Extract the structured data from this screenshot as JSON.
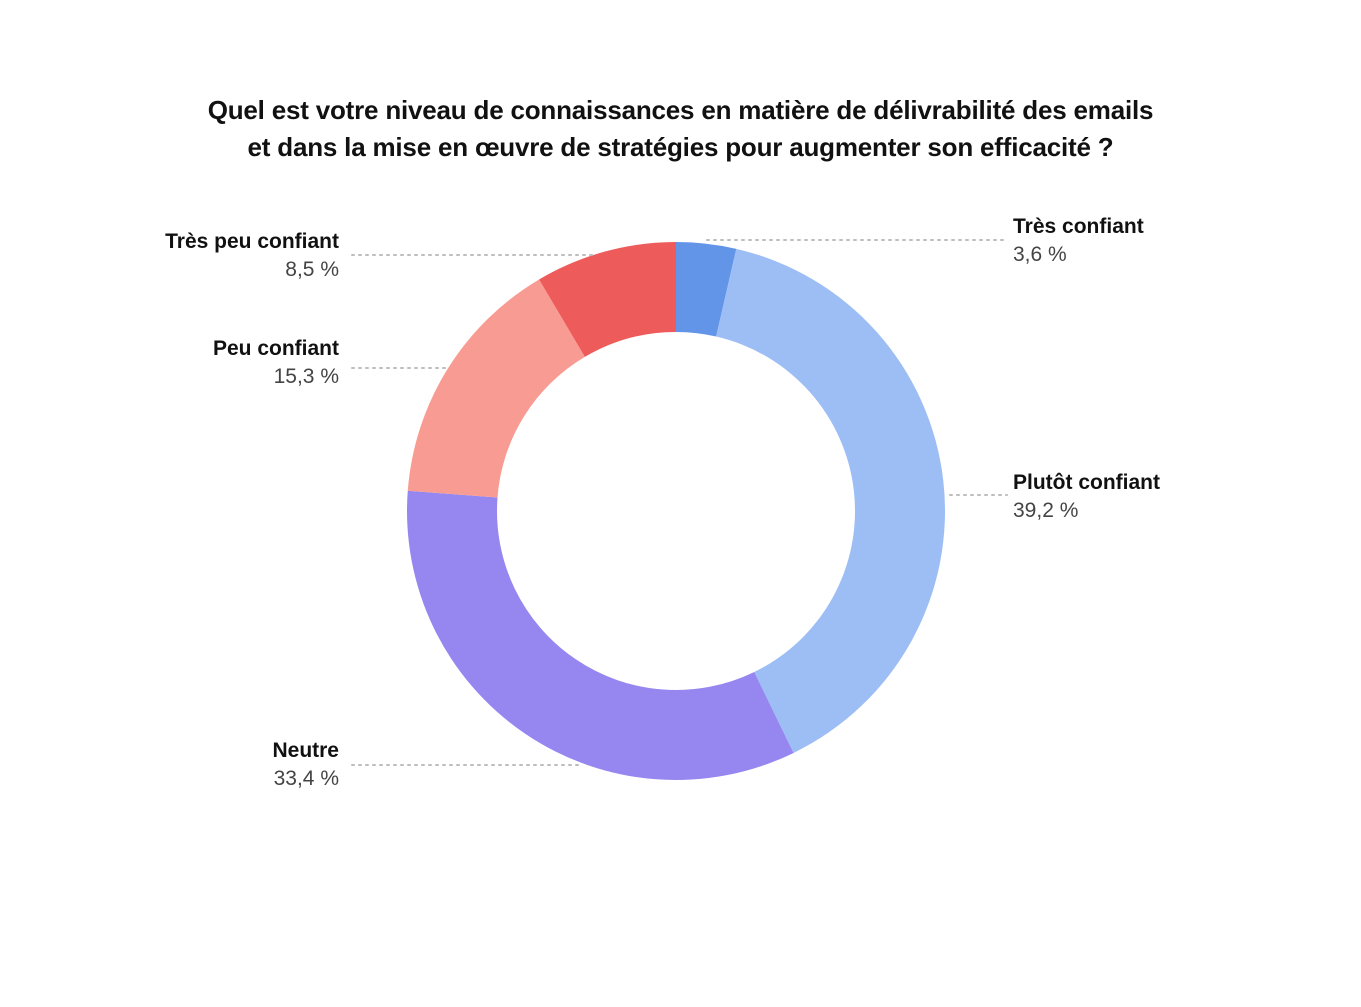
{
  "title_lines": [
    "Quel est votre niveau de connaissances en matière de délivrabilité des emails",
    "et dans la mise en œuvre de stratégies pour augmenter son efficacité ?"
  ],
  "chart_data": {
    "type": "pie",
    "donut": true,
    "title": "Quel est votre niveau de connaissances en matière de délivrabilité des emails et dans la mise en œuvre de stratégies pour augmenter son efficacité ?",
    "legend": "none",
    "slices": [
      {
        "label": "Très confiant",
        "value": 3.6,
        "display": "3,6 %",
        "color": "#6295E8"
      },
      {
        "label": "Plutôt confiant",
        "value": 39.2,
        "display": "39,2 %",
        "color": "#9DBEF5"
      },
      {
        "label": "Neutre",
        "value": 33.4,
        "display": "33,4 %",
        "color": "#9687F0"
      },
      {
        "label": "Peu confiant",
        "value": 15.3,
        "display": "15,3 %",
        "color": "#F89C93"
      },
      {
        "label": "Très peu confiant",
        "value": 8.5,
        "display": "8,5 %",
        "color": "#EE5B5B"
      }
    ]
  }
}
